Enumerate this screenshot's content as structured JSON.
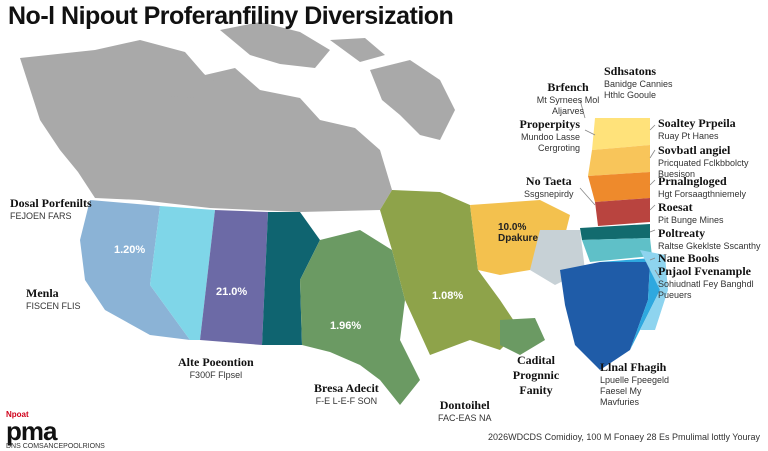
{
  "title": "No-l Nipout Proferanfiliny Diversization",
  "colors": {
    "gray": "#a9a9a9",
    "light_blue": "#8bb3d6",
    "cyan": "#7fd6e8",
    "purple": "#6c6aa6",
    "teal": "#0f6470",
    "green": "#6b9a63",
    "olive": "#8ea34a",
    "orange_light": "#f3c14e",
    "yellow": "#ffe27a",
    "orange": "#ee8a2c",
    "red": "#b9443f",
    "dark_teal": "#126b6e",
    "blue": "#1f5ca8",
    "sky": "#2ea8df"
  },
  "percentages": {
    "west": "1.20%",
    "middle": "21.0%",
    "center": "1.08%",
    "south": "1.96%",
    "east": "10.0% Dpakure"
  },
  "labels": {
    "left_top": {
      "title": "Dosal Porfenilts",
      "sub": "FEJOEN FARS"
    },
    "left_mid": {
      "title": "Menla",
      "sub": "FISCEN FLIS"
    },
    "bottom_a": {
      "title": "Alte Poeontion",
      "sub": "F300F Flpsel"
    },
    "bottom_b": {
      "title": "Bresa Adecit",
      "sub": "F-E L-E-F SON"
    },
    "bottom_c": {
      "title": "Dontoihel",
      "sub": "FAC-EAS NA"
    },
    "center_low": {
      "title": "Cadital Prognnic Fanity",
      "sub": ""
    },
    "mid_a": {
      "title": "Brfench",
      "sub": "Mt Syrnees Mol Aljarves"
    },
    "mid_b": {
      "title": "Properpitys",
      "sub": "Mundoo Lasse Cergroting"
    },
    "mid_c": {
      "title": "No Taeta",
      "sub": "Ssgsnepirdy"
    },
    "right_top": {
      "title": "Sdhsatons",
      "sub": "Banidge Cannies Hthlc Gooule"
    },
    "r1": {
      "title": "Soaltey Prpeila",
      "sub": "Ruay Pt Hanes"
    },
    "r2": {
      "title": "Sovbatl angiel",
      "sub": "Pricquated Fclkbbolcty Buesison"
    },
    "r3": {
      "title": "Prnalngloged",
      "sub": "Hgt Forsaagthniemely"
    },
    "r4": {
      "title": "Roesat",
      "sub": "Pit Bunge Mines"
    },
    "r5": {
      "title": "Poltreaty",
      "sub": "Raltse Gkeklste Sscanthy"
    },
    "r6": {
      "title": "Nane Boohs",
      "sub": ""
    },
    "r7": {
      "title": "Pnjaol Fvenample",
      "sub": "Sohiudnatl Fey Banghdl Pueuers"
    },
    "r8": {
      "title": "Llnal Fhagih",
      "sub": "Lpuelle Fpeegeld Faesel My Mavfuries"
    }
  },
  "logo": {
    "small": "Npoat",
    "big": "pma",
    "tag": "DNS COMSANCEPOOLRIONS"
  },
  "footer": "2026WDCDS Comidioy, 100 M Fonaey 28 Es Pmulimal lottly Youray"
}
